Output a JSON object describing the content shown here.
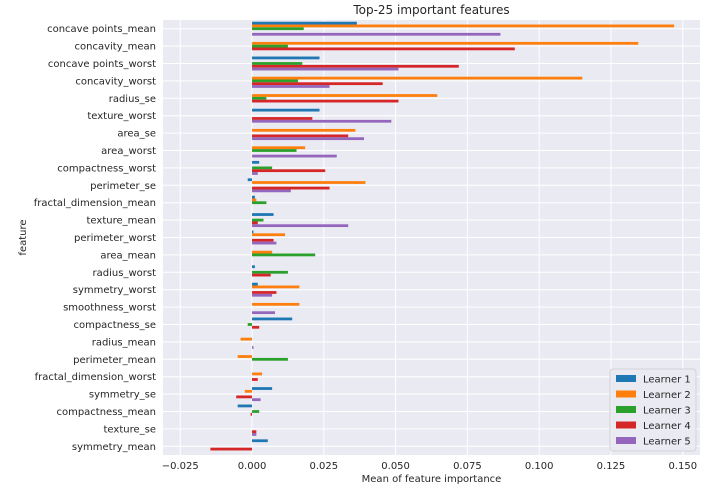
{
  "chart_data": {
    "type": "bar",
    "orientation": "horizontal",
    "title": "Top-25 important features",
    "xlabel": "Mean of feature importance",
    "ylabel": "feature",
    "xlim": [
      -0.031,
      0.156
    ],
    "xticks": [
      -0.025,
      0.0,
      0.025,
      0.05,
      0.075,
      0.1,
      0.125,
      0.15
    ],
    "xtick_labels": [
      "−0.025",
      "0.000",
      "0.025",
      "0.050",
      "0.075",
      "0.100",
      "0.125",
      "0.150"
    ],
    "grid": true,
    "legend_position": "lower-right",
    "categories": [
      "concave points_mean",
      "concavity_mean",
      "concave points_worst",
      "concavity_worst",
      "radius_se",
      "texture_worst",
      "area_se",
      "area_worst",
      "compactness_worst",
      "perimeter_se",
      "fractal_dimension_mean",
      "texture_mean",
      "perimeter_worst",
      "area_mean",
      "radius_worst",
      "symmetry_worst",
      "smoothness_worst",
      "compactness_se",
      "radius_mean",
      "perimeter_mean",
      "fractal_dimension_worst",
      "symmetry_se",
      "compactness_mean",
      "texture_se",
      "symmetry_mean"
    ],
    "series": [
      {
        "name": "Learner 1",
        "color": "#1f77b4",
        "values": [
          0.0365,
          0.0,
          0.0235,
          0.0,
          0.0,
          0.0235,
          0.0,
          0.0,
          0.0025,
          -0.0015,
          0.001,
          0.0075,
          0.0005,
          0.0,
          0.001,
          0.002,
          0.0,
          0.014,
          0.0,
          0.0,
          0.0,
          0.007,
          -0.005,
          0.0,
          0.0055
        ],
        "errors": [
          0.0,
          0.0,
          0.0,
          0.0,
          0.0,
          0.0,
          0.0,
          0.0,
          0.0,
          0.0,
          0.0,
          0.0,
          0.0,
          0.0,
          0.0,
          0.0,
          0.0,
          0.0,
          0.0,
          0.0,
          0.0,
          0.0,
          0.0,
          0.0,
          0.0
        ]
      },
      {
        "name": "Learner 2",
        "color": "#ff7f0e",
        "values": [
          0.147,
          0.1345,
          0.0,
          0.115,
          0.0645,
          0.0,
          0.036,
          0.0185,
          0.0,
          0.0395,
          0.0015,
          0.0,
          0.0115,
          0.007,
          0.0,
          0.0165,
          0.0165,
          0.0,
          -0.004,
          -0.005,
          0.0035,
          -0.0025,
          0.0,
          0.0,
          0.0
        ],
        "errors": [
          0.0,
          0.0,
          0.0,
          0.0,
          0.0,
          0.0,
          0.0,
          0.0,
          0.0,
          0.0,
          0.0,
          0.0,
          0.0,
          0.0,
          0.0,
          0.0,
          0.0,
          0.0,
          0.0,
          0.0,
          0.0,
          0.0,
          0.0,
          0.0,
          0.0
        ]
      },
      {
        "name": "Learner 3",
        "color": "#2ca02c",
        "values": [
          0.018,
          0.0125,
          0.0175,
          0.016,
          0.005,
          0.0,
          0.0,
          0.0155,
          0.007,
          0.0,
          0.005,
          0.004,
          0.0,
          0.022,
          0.0125,
          0.0,
          0.0,
          -0.0015,
          0.0,
          0.0125,
          0.0,
          0.0,
          0.0025,
          0.0,
          0.0
        ],
        "errors": [
          0.0,
          0.0,
          0.0,
          0.0,
          0.0,
          0.0,
          0.0,
          0.0,
          0.0,
          0.0,
          0.0,
          0.0,
          0.0,
          0.0,
          0.0,
          0.0,
          0.0,
          0.0,
          0.0,
          0.0,
          0.0,
          0.0,
          0.0,
          0.0,
          0.0
        ]
      },
      {
        "name": "Learner 4",
        "color": "#d62728",
        "values": [
          0.0,
          0.0915,
          0.072,
          0.0455,
          0.051,
          0.021,
          0.0335,
          0.0,
          0.0255,
          0.027,
          0.0,
          0.002,
          0.0075,
          0.0,
          0.0065,
          0.0085,
          0.0,
          0.0025,
          0.0,
          0.0,
          0.002,
          -0.0055,
          -0.0005,
          0.0015,
          -0.0145
        ],
        "errors": [
          0.0,
          0.0,
          0.0,
          0.0,
          0.0,
          0.0,
          0.0,
          0.0,
          0.0,
          0.0,
          0.0,
          0.0,
          0.0,
          0.0,
          0.0,
          0.0,
          0.0,
          0.0,
          0.0,
          0.0,
          0.0,
          0.0,
          0.0,
          0.0,
          0.0
        ]
      },
      {
        "name": "Learner 5",
        "color": "#9467bd",
        "values": [
          0.0865,
          0.0,
          0.051,
          0.027,
          0.0,
          0.0485,
          0.039,
          0.0295,
          0.002,
          0.0135,
          0.0,
          0.0335,
          0.0085,
          0.0,
          0.0,
          0.007,
          0.008,
          0.0,
          0.0005,
          0.0,
          0.0,
          0.003,
          0.0,
          0.0015,
          0.0
        ],
        "errors": [
          0.0,
          0.0,
          0.0,
          0.0,
          0.0,
          0.0,
          0.0,
          0.0,
          0.0,
          0.0,
          0.0,
          0.0,
          0.0,
          0.0,
          0.0,
          0.0,
          0.0,
          0.0,
          0.0,
          0.0,
          0.0,
          0.0,
          0.0,
          0.0,
          0.0
        ]
      }
    ]
  }
}
